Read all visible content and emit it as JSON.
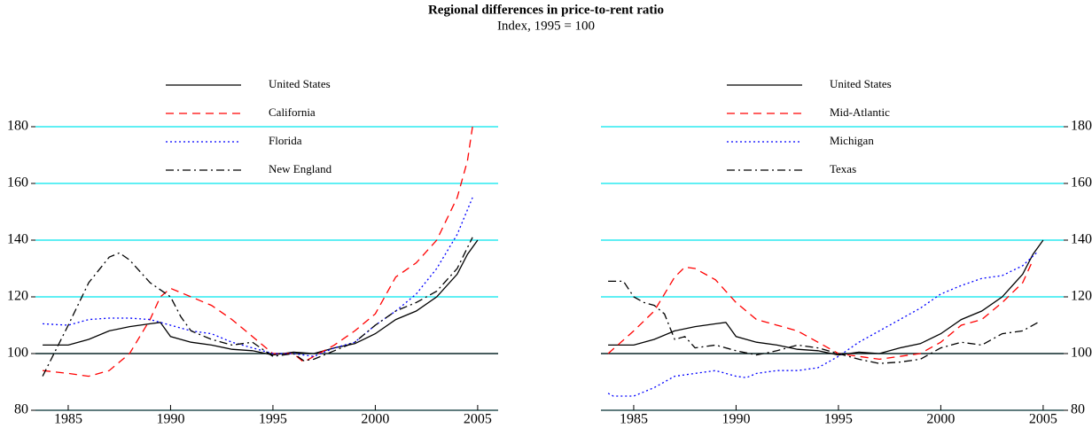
{
  "title": "Regional differences in price-to-rent ratio",
  "subtitle": "Index, 1995 = 100",
  "chart_data": [
    {
      "type": "line",
      "xlim": [
        1983.4,
        2006
      ],
      "ylim": [
        80,
        185
      ],
      "xticks": [
        1985,
        1990,
        1995,
        2000,
        2005
      ],
      "yticks": [
        80,
        100,
        120,
        140,
        160,
        180
      ],
      "yaxis_side": "left",
      "grid": true,
      "grid_color": "#00e5ee",
      "baseline": 100,
      "series": [
        {
          "name": "United States",
          "color": "#000000",
          "dash": "solid",
          "x": [
            1983.75,
            1985,
            1986,
            1987,
            1988,
            1989,
            1989.5,
            1990,
            1991,
            1992,
            1993,
            1994,
            1995,
            1996,
            1997,
            1998,
            1999,
            2000,
            2001,
            2002,
            2003,
            2004,
            2004.5,
            2005
          ],
          "values": [
            103,
            103,
            105,
            108,
            109.5,
            110.5,
            111,
            106,
            104,
            103,
            101.5,
            101,
            99.5,
            100.5,
            100,
            102,
            103.5,
            107,
            112,
            115,
            120,
            128,
            135,
            140
          ]
        },
        {
          "name": "California",
          "color": "#ff0000",
          "dash": "dashed",
          "x": [
            1983.75,
            1985,
            1986,
            1987,
            1988,
            1989,
            1989.5,
            1990,
            1991,
            1992,
            1993,
            1994,
            1995,
            1996,
            1996.5,
            1997,
            1998,
            1999,
            2000,
            2001,
            2002,
            2003,
            2004,
            2004.5,
            2004.75
          ],
          "values": [
            94,
            93,
            92,
            94,
            100,
            112,
            120,
            123,
            120,
            117,
            112,
            106,
            100,
            100,
            97,
            99,
            103,
            108,
            114,
            127,
            132,
            140,
            155,
            168,
            180
          ]
        },
        {
          "name": "Florida",
          "color": "#0000ff",
          "dash": "dotted",
          "x": [
            1983.75,
            1985,
            1986,
            1987,
            1988,
            1989,
            1990,
            1991,
            1992,
            1993,
            1994,
            1995,
            1996,
            1997,
            1998,
            1999,
            2000,
            2001,
            2002,
            2003,
            2004,
            2004.75
          ],
          "values": [
            110.5,
            110,
            112,
            112.5,
            112.5,
            112,
            110,
            108,
            107,
            104,
            102,
            100,
            100,
            99,
            102,
            104,
            110,
            115,
            121,
            130,
            142,
            155
          ]
        },
        {
          "name": "New England",
          "color": "#000000",
          "dash": "dashdot",
          "x": [
            1983.75,
            1985,
            1986,
            1987,
            1987.5,
            1988,
            1989,
            1990,
            1990.5,
            1991,
            1992,
            1993,
            1994,
            1995,
            1996,
            1996.5,
            1997,
            1998,
            1999,
            2000,
            2001,
            2002,
            2003,
            2004,
            2004.75
          ],
          "values": [
            92,
            110,
            125,
            134,
            135.5,
            133,
            125,
            120,
            113,
            108,
            105,
            103,
            104,
            99,
            100,
            97.5,
            98,
            101,
            104,
            110,
            115,
            118,
            122,
            130,
            141
          ]
        }
      ]
    },
    {
      "type": "line",
      "xlim": [
        1983.4,
        2006
      ],
      "ylim": [
        80,
        185
      ],
      "xticks": [
        1985,
        1990,
        1995,
        2000,
        2005
      ],
      "yticks": [
        80,
        100,
        120,
        140,
        160,
        180
      ],
      "yaxis_side": "right",
      "grid": true,
      "grid_color": "#00e5ee",
      "baseline": 100,
      "series": [
        {
          "name": "United States",
          "color": "#000000",
          "dash": "solid",
          "x": [
            1983.75,
            1985,
            1986,
            1987,
            1988,
            1989,
            1989.5,
            1990,
            1991,
            1992,
            1993,
            1994,
            1995,
            1996,
            1997,
            1998,
            1999,
            2000,
            2001,
            2002,
            2003,
            2004,
            2004.5,
            2005
          ],
          "values": [
            103,
            103,
            105,
            108,
            109.5,
            110.5,
            111,
            106,
            104,
            103,
            101.5,
            101,
            99.5,
            100.5,
            100,
            102,
            103.5,
            107,
            112,
            115,
            120,
            128,
            135,
            140
          ]
        },
        {
          "name": "Mid-Atlantic",
          "color": "#ff0000",
          "dash": "dashed",
          "x": [
            1983.75,
            1985,
            1986,
            1987,
            1987.5,
            1988,
            1989,
            1990,
            1991,
            1992,
            1993,
            1994,
            1995,
            1996,
            1997,
            1998,
            1999,
            2000,
            2001,
            2002,
            2003,
            2004,
            2004.5
          ],
          "values": [
            100,
            108,
            115,
            127,
            130.5,
            130,
            126,
            118,
            112,
            110,
            108,
            104,
            100,
            99,
            98,
            99,
            100,
            104,
            110,
            112,
            118,
            125,
            133
          ]
        },
        {
          "name": "Michigan",
          "color": "#0000ff",
          "dash": "dotted",
          "x": [
            1983.75,
            1984,
            1985,
            1986,
            1987,
            1988,
            1989,
            1990,
            1990.5,
            1991,
            1992,
            1993,
            1994,
            1995,
            1996,
            1997,
            1998,
            1999,
            2000,
            2001,
            2002,
            2003,
            2004,
            2004.75
          ],
          "values": [
            86,
            85,
            85,
            88,
            92,
            93,
            94,
            92,
            91.5,
            93,
            94,
            94,
            95,
            99,
            104,
            108,
            112,
            116,
            121,
            124,
            126.5,
            127.5,
            131,
            136
          ]
        },
        {
          "name": "Texas",
          "color": "#000000",
          "dash": "dashdot",
          "x": [
            1983.75,
            1984.5,
            1985,
            1985.5,
            1986,
            1986.5,
            1987,
            1987.5,
            1988,
            1989,
            1990,
            1991,
            1992,
            1993,
            1994,
            1995,
            1996,
            1997,
            1998,
            1999,
            2000,
            2001,
            2002,
            2003,
            2004,
            2004.75
          ],
          "values": [
            125.5,
            125.5,
            120,
            118,
            117,
            114,
            105,
            106,
            102,
            103,
            101,
            99.5,
            101,
            103,
            102,
            100,
            98,
            96.5,
            97,
            98,
            102,
            104,
            103,
            107,
            108,
            111
          ]
        }
      ]
    }
  ]
}
